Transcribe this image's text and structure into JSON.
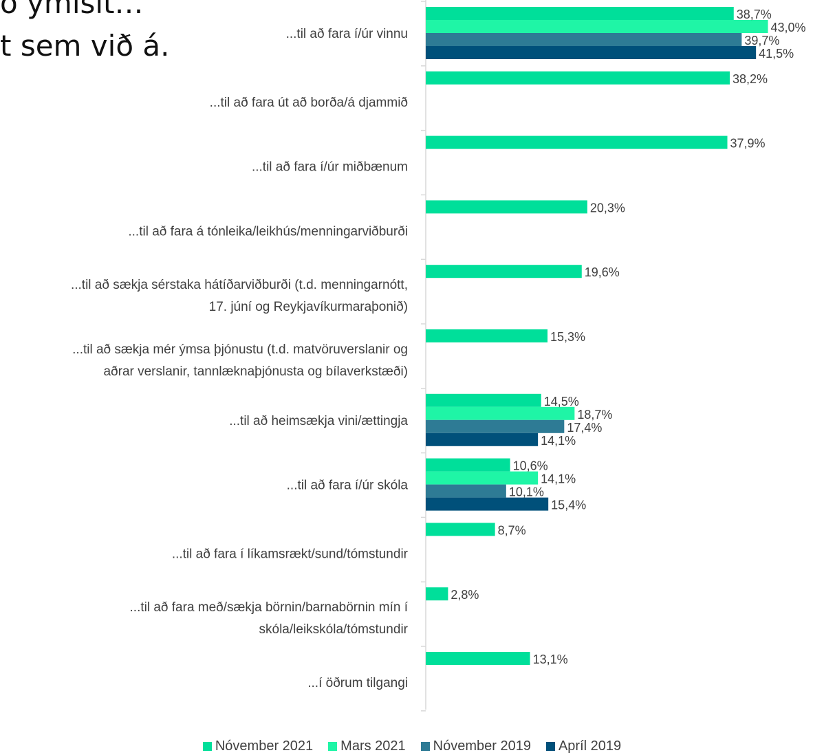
{
  "header": {
    "line1": "ö ýmislt…",
    "line2": "t sem við á."
  },
  "chart_data": {
    "type": "bar",
    "orientation": "horizontal",
    "categories": [
      [
        "...til að fara í/úr vinnu"
      ],
      [
        "...til að fara út að borða/á djammið"
      ],
      [
        "...til að fara í/úr miðbænum"
      ],
      [
        "...til að fara á tónleika/leikhús/menningarviðburði"
      ],
      [
        "...til að sækja sérstaka hátíðarviðburði (t.d. menningarnótt,",
        "17. júní og Reykjavíkurmaraþonið)"
      ],
      [
        "...til að sækja mér ýmsa þjónustu (t.d. matvöruverslanir og",
        "aðrar verslanir, tannlæknaþjónusta og bílaverkstæði)"
      ],
      [
        "...til að heimsækja vini/ættingja"
      ],
      [
        "...til að fara í/úr skóla"
      ],
      [
        "...til að fara í líkamsrækt/sund/tómstundir"
      ],
      [
        "...til að fara með/sækja börnin/barnabörnin mín í",
        "skóla/leikskóla/tómstundir"
      ],
      [
        "...í öðrum tilgangi"
      ]
    ],
    "series": [
      {
        "name": "Nóvember 2021",
        "color": "#00df9a",
        "values": [
          38.7,
          38.2,
          37.9,
          20.3,
          19.6,
          15.3,
          14.5,
          10.6,
          8.7,
          2.8,
          13.1
        ],
        "labels": [
          "38,7%",
          "38,2%",
          "37,9%",
          "20,3%",
          "19,6%",
          "15,3%",
          "14,5%",
          "10,6%",
          "8,7%",
          "2,8%",
          "13,1%"
        ]
      },
      {
        "name": "Mars 2021",
        "color": "#1ff5a6",
        "values": [
          43.0,
          null,
          null,
          null,
          null,
          null,
          18.7,
          14.1,
          null,
          null,
          null
        ],
        "labels": [
          "43,0%",
          null,
          null,
          null,
          null,
          null,
          "18,7%",
          "14,1%",
          null,
          null,
          null
        ]
      },
      {
        "name": "Nóvember 2019",
        "color": "#2e7b95",
        "values": [
          39.7,
          null,
          null,
          null,
          null,
          null,
          17.4,
          10.1,
          null,
          null,
          null
        ],
        "labels": [
          "39,7%",
          null,
          null,
          null,
          null,
          null,
          "17,4%",
          "10,1%",
          null,
          null,
          null
        ]
      },
      {
        "name": "Apríl 2019",
        "color": "#00507a",
        "values": [
          41.5,
          null,
          null,
          null,
          null,
          null,
          14.1,
          15.4,
          null,
          null,
          null
        ],
        "labels": [
          "41,5%",
          null,
          null,
          null,
          null,
          null,
          "14,1%",
          "15,4%",
          null,
          null,
          null
        ]
      }
    ],
    "xlim": [
      0,
      50
    ],
    "grid": false,
    "legend_position": "bottom"
  }
}
